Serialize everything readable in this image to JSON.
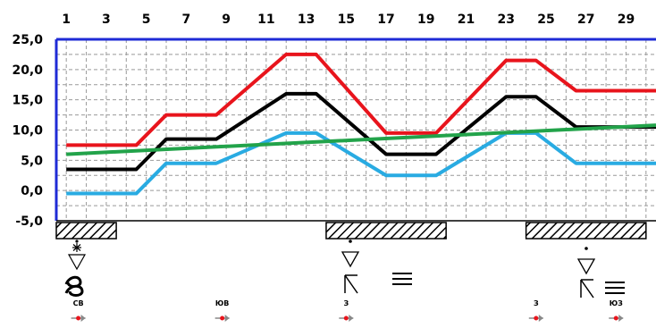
{
  "chart_data": {
    "type": "line",
    "x_ticks": [
      "1",
      "3",
      "5",
      "7",
      "9",
      "11",
      "13",
      "15",
      "17",
      "19",
      "21",
      "23",
      "25",
      "27",
      "29"
    ],
    "y_ticks": [
      "25,0",
      "20,0",
      "15,0",
      "10,0",
      "5,0",
      "0,0",
      "-5,0"
    ],
    "ylim": [
      -5,
      25
    ],
    "xlim": [
      0,
      30
    ],
    "grid": true,
    "series": [
      {
        "color": "#e8141c",
        "x": [
          0.5,
          4,
          5.5,
          8,
          11.5,
          13,
          16.5,
          19,
          22.5,
          24,
          26,
          30
        ],
        "values": [
          7.5,
          7.5,
          12.5,
          12.5,
          22.5,
          22.5,
          9.5,
          9.5,
          21.5,
          21.5,
          16.5,
          16.5
        ]
      },
      {
        "color": "#000000",
        "x": [
          0.5,
          4,
          5.5,
          8,
          11.5,
          13,
          16.5,
          19,
          22.5,
          24,
          26,
          30
        ],
        "values": [
          3.5,
          3.5,
          8.5,
          8.5,
          16,
          16,
          6,
          6,
          15.5,
          15.5,
          10.5,
          10.5
        ]
      },
      {
        "color": "#29abe2",
        "x": [
          0.5,
          4,
          5.5,
          8,
          11.5,
          13,
          16.5,
          19,
          22.5,
          24,
          26,
          30
        ],
        "values": [
          -0.5,
          -0.5,
          4.5,
          4.5,
          9.5,
          9.5,
          2.5,
          2.5,
          9.5,
          9.5,
          4.5,
          4.5
        ]
      },
      {
        "color": "#22a34a",
        "x": [
          0.5,
          30
        ],
        "values": [
          6,
          10.8
        ]
      }
    ],
    "hatched_periods": [
      [
        0.5,
        3.5
      ],
      [
        14,
        20
      ],
      [
        24,
        30
      ]
    ],
    "wind_labels": [
      {
        "text": "СВ",
        "day": 1.6
      },
      {
        "text": "ЮВ",
        "day": 8.8
      },
      {
        "text": "З",
        "day": 15
      },
      {
        "text": "З",
        "day": 24.5
      },
      {
        "text": "ЮЗ",
        "day": 28.5
      }
    ]
  },
  "icons": [
    "snow-shower-icon",
    "drifting-snow-icon",
    "snow-shower-icon",
    "thunderstorm-icon",
    "fog-icon",
    "snow-shower-icon",
    "thunderstorm-icon",
    "fog-icon"
  ]
}
